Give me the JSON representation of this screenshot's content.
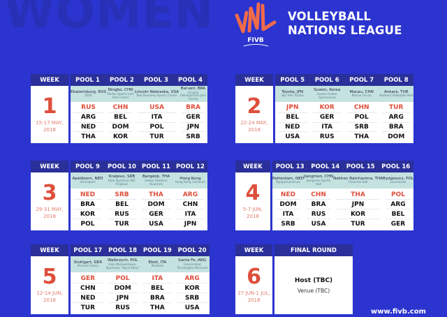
{
  "watermark": "WOMEN",
  "logo": {
    "mark": "VNL",
    "sub": "FIVB",
    "title_line1": "VOLLEYBALL",
    "title_line2": "NATIONS LEAGUE"
  },
  "week_header": "WEEK",
  "weeks": [
    {
      "number": "1",
      "date_line1": "15-17 MAY,",
      "date_line2": "2018",
      "pools": [
        {
          "label": "POOL 1",
          "city": "Ekaterinburg, RUS",
          "arena": "DIVS",
          "teams": [
            "RUS",
            "ARG",
            "NED",
            "THA"
          ]
        },
        {
          "label": "POOL 2",
          "city": "Ningbo, CHN",
          "arena": "Beilun Sports and Arts Center",
          "teams": [
            "CHN",
            "BEL",
            "DOM",
            "KOR"
          ]
        },
        {
          "label": "POOL 3",
          "city": "Lincoln Nebraska, USA",
          "arena": "Bob Devaney Sports Center",
          "teams": [
            "USA",
            "ITA",
            "POL",
            "TUR"
          ]
        },
        {
          "label": "POOL 4",
          "city": "Barueri, BRA",
          "arena": "Ginasio Poliesportivo Jose Correa",
          "teams": [
            "BRA",
            "GER",
            "JPN",
            "SRB"
          ]
        }
      ]
    },
    {
      "number": "2",
      "date_line1": "22-24 MAY,",
      "date_line2": "2018",
      "pools": [
        {
          "label": "POOL 5",
          "city": "Toyota, JPN",
          "arena": "Sky Hall Toyota",
          "teams": [
            "JPN",
            "BEL",
            "NED",
            "USA"
          ]
        },
        {
          "label": "POOL 6",
          "city": "Suwon, Korea",
          "arena": "Suwon Indoor Gymnasium",
          "teams": [
            "KOR",
            "GER",
            "ITA",
            "RUS"
          ]
        },
        {
          "label": "POOL 7",
          "city": "Macau, CHN",
          "arena": "Macau Forum",
          "teams": [
            "CHN",
            "POL",
            "SRB",
            "THA"
          ]
        },
        {
          "label": "POOL 8",
          "city": "Ankara, TUR",
          "arena": "Baskent Volleyball Hall",
          "teams": [
            "TUR",
            "ARG",
            "BRA",
            "DOM"
          ]
        }
      ]
    },
    {
      "number": "3",
      "date_line1": "29-31 MAY,",
      "date_line2": "2018",
      "pools": [
        {
          "label": "POOL 9",
          "city": "Apeldoorn, NED",
          "arena": "Omnisport",
          "teams": [
            "NED",
            "BRA",
            "KOR",
            "POL"
          ]
        },
        {
          "label": "POOL 10",
          "city": "Kraljevo, SRB",
          "arena": "Hala Sportova SRC Kraljevo",
          "teams": [
            "SRB",
            "BEL",
            "RUS",
            "TUR"
          ]
        },
        {
          "label": "POOL 11",
          "city": "Bangkok, THA",
          "arena": "Indoor Stadium Huamark",
          "teams": [
            "THA",
            "DOM",
            "GER",
            "USA"
          ]
        },
        {
          "label": "POOL 12",
          "city": "Hong Kong",
          "arena": "Hong Kong Coliseum",
          "teams": [
            "ARG",
            "CHN",
            "ITA",
            "JPN"
          ]
        }
      ]
    },
    {
      "number": "4",
      "date_line1": "5-7 JUN,",
      "date_line2": "2018",
      "pools": [
        {
          "label": "POOL 13",
          "city": "Rotterdam, NED",
          "arena": "Topsportcentrum",
          "teams": [
            "NED",
            "DOM",
            "ITA",
            "SRB"
          ]
        },
        {
          "label": "POOL 14",
          "city": "Jiangmen, CHN",
          "arena": "Jiangmen Sports Hall",
          "teams": [
            "CHN",
            "BRA",
            "RUS",
            "USA"
          ]
        },
        {
          "label": "POOL 15",
          "city": "Nakhon Ratchasima, THA",
          "arena": "Chatchai Hall",
          "teams": [
            "THA",
            "JPN",
            "KOR",
            "TUR"
          ]
        },
        {
          "label": "POOL 16",
          "city": "Bydgoszcz, POL",
          "arena": "Luczniczka",
          "teams": [
            "POL",
            "ARG",
            "BEL",
            "GER"
          ]
        }
      ]
    },
    {
      "number": "5",
      "date_line1": "12-14 JUN,",
      "date_line2": "2018",
      "pools": [
        {
          "label": "POOL 17",
          "city": "Stuttgart, GER",
          "arena": "Porsche Arena",
          "teams": [
            "GER",
            "CHN",
            "NED",
            "TUR"
          ]
        },
        {
          "label": "POOL 18",
          "city": "Walbrzych, POL",
          "arena": "Hala Widowiskowo-Sportowa \"Aqua-Zdroj\"",
          "teams": [
            "POL",
            "DOM",
            "JPN",
            "RUS"
          ]
        },
        {
          "label": "POOL 19",
          "city": "Eboli, ITA",
          "arena": "PalaSele",
          "teams": [
            "ITA",
            "BEL",
            "BRA",
            "THA"
          ]
        },
        {
          "label": "POOL 20",
          "city": "Santa Fe, ARG",
          "arena": "Universidad Tecnologica Nacional",
          "teams": [
            "ARG",
            "KOR",
            "SRB",
            "USA"
          ]
        }
      ]
    }
  ],
  "final": {
    "number": "6",
    "date_line1": "27 JUN-1 JUL,",
    "date_line2": "2018",
    "header": "FINAL ROUND",
    "host": "Host (TBC)",
    "venue": "Venue (TBC)"
  },
  "footer": {
    "website": "www.fivb.com"
  },
  "colors": {
    "background": "#2b34cf",
    "header": "#2a2f9a",
    "accent_red": "#de4f3c",
    "venue_band": "#c4e2e0"
  }
}
